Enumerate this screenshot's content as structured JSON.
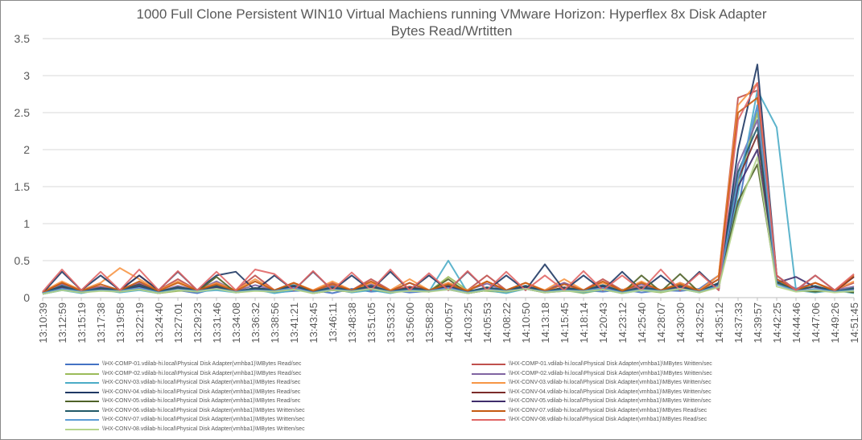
{
  "chart_data": {
    "type": "line",
    "title_line1": "1000 Full Clone Persistent WIN10 Virtual Machiens running VMware Horizon: Hyperflex 8x Disk Adapter",
    "title_line2": "Bytes Read/Wrtitten",
    "ylim": [
      0,
      3.5
    ],
    "yticks": [
      "0",
      "0.5",
      "1",
      "1.5",
      "2",
      "2.5",
      "3",
      "3.5"
    ],
    "grid": "horizontal",
    "legend_position": "bottom",
    "x": [
      "13:10:39",
      "13:12:59",
      "13:15:19",
      "13:17:38",
      "13:19:58",
      "13:22:19",
      "13:24:40",
      "13:27:01",
      "13:29:23",
      "13:31:46",
      "13:34:08",
      "13:36:32",
      "13:38:56",
      "13:41:21",
      "13:43:45",
      "13:46:11",
      "13:48:38",
      "13:51:05",
      "13:53:32",
      "13:56:00",
      "13:58:28",
      "14:00:57",
      "14:03:25",
      "14:05:53",
      "14:08:22",
      "14:10:50",
      "14:13:18",
      "14:15:45",
      "14:18:14",
      "14:20:43",
      "14:23:12",
      "14:25:40",
      "14:28:07",
      "14:30:30",
      "14:32:52",
      "14:35:12",
      "14:37:33",
      "14:39:57",
      "14:42:25",
      "14:44:46",
      "14:47:06",
      "14:49:26",
      "14:51:45"
    ],
    "series": [
      {
        "name": "\\\\HX-COMP-01.vdilab-hi.local\\Physical Disk Adapter(vmhba1)\\MBytes Read/sec",
        "color": "#4472c4",
        "values": [
          0.05,
          0.1,
          0.08,
          0.12,
          0.09,
          0.15,
          0.07,
          0.1,
          0.06,
          0.13,
          0.08,
          0.11,
          0.07,
          0.09,
          0.1,
          0.06,
          0.12,
          0.08,
          0.1,
          0.07,
          0.09,
          0.11,
          0.06,
          0.1,
          0.08,
          0.12,
          0.07,
          0.09,
          0.1,
          0.08,
          0.11,
          0.07,
          0.1,
          0.09,
          0.12,
          0.3,
          1.2,
          2.6,
          0.3,
          0.1,
          0.09,
          0.1,
          0.08
        ]
      },
      {
        "name": "\\\\HX-COMP-01.vdilab-hi.local\\Physical Disk Adapter(vmhba1)\\MBytes Written/sec",
        "color": "#c0504d",
        "values": [
          0.08,
          0.2,
          0.1,
          0.15,
          0.1,
          0.3,
          0.1,
          0.25,
          0.1,
          0.2,
          0.1,
          0.3,
          0.1,
          0.15,
          0.1,
          0.2,
          0.1,
          0.25,
          0.1,
          0.15,
          0.1,
          0.2,
          0.1,
          0.3,
          0.1,
          0.15,
          0.1,
          0.2,
          0.1,
          0.25,
          0.1,
          0.15,
          0.1,
          0.2,
          0.1,
          0.3,
          2.7,
          2.8,
          0.2,
          0.1,
          0.15,
          0.1,
          0.2
        ]
      },
      {
        "name": "\\\\HX-COMP-02.vdilab-hi.local\\Physical Disk Adapter(vmhba1)\\MBytes Read/sec",
        "color": "#9bbb59",
        "values": [
          0.06,
          0.12,
          0.07,
          0.1,
          0.08,
          0.11,
          0.06,
          0.09,
          0.1,
          0.14,
          0.07,
          0.1,
          0.08,
          0.12,
          0.06,
          0.1,
          0.09,
          0.11,
          0.07,
          0.1,
          0.08,
          0.28,
          0.1,
          0.09,
          0.07,
          0.12,
          0.08,
          0.1,
          0.06,
          0.11,
          0.09,
          0.1,
          0.07,
          0.12,
          0.08,
          0.2,
          1.5,
          2.5,
          0.2,
          0.1,
          0.08,
          0.1,
          0.07
        ]
      },
      {
        "name": "\\\\HX-COMP-02.vdilab-hi.local\\Physical Disk Adapter(vmhba1)\\MBytes Written/sec",
        "color": "#8064a2",
        "values": [
          0.07,
          0.18,
          0.09,
          0.14,
          0.1,
          0.2,
          0.08,
          0.16,
          0.1,
          0.22,
          0.09,
          0.17,
          0.1,
          0.2,
          0.08,
          0.16,
          0.1,
          0.18,
          0.09,
          0.2,
          0.08,
          0.15,
          0.1,
          0.19,
          0.09,
          0.16,
          0.1,
          0.2,
          0.08,
          0.17,
          0.1,
          0.18,
          0.09,
          0.2,
          0.1,
          0.25,
          1.8,
          2.4,
          0.25,
          0.12,
          0.2,
          0.1,
          0.15
        ]
      },
      {
        "name": "\\\\HX-CONV-03.vdilab-hi.local\\Physical Disk Adapter(vmhba1)\\MBytes Read/sec",
        "color": "#4bacc6",
        "values": [
          0.05,
          0.1,
          0.06,
          0.11,
          0.07,
          0.1,
          0.06,
          0.12,
          0.08,
          0.1,
          0.07,
          0.11,
          0.06,
          0.1,
          0.08,
          0.12,
          0.07,
          0.1,
          0.06,
          0.11,
          0.08,
          0.5,
          0.07,
          0.1,
          0.06,
          0.12,
          0.08,
          0.1,
          0.07,
          0.11,
          0.06,
          0.1,
          0.08,
          0.12,
          0.07,
          0.2,
          1.4,
          2.8,
          2.3,
          0.1,
          0.07,
          0.1,
          0.06
        ]
      },
      {
        "name": "\\\\HX-CONV-03.vdilab-hi.local\\Physical Disk Adapter(vmhba1)\\MBytes Written/sec",
        "color": "#f79646",
        "values": [
          0.08,
          0.22,
          0.1,
          0.2,
          0.4,
          0.25,
          0.1,
          0.22,
          0.1,
          0.2,
          0.1,
          0.25,
          0.1,
          0.2,
          0.1,
          0.22,
          0.1,
          0.2,
          0.1,
          0.25,
          0.1,
          0.2,
          0.1,
          0.22,
          0.1,
          0.2,
          0.1,
          0.25,
          0.1,
          0.2,
          0.1,
          0.22,
          0.1,
          0.2,
          0.1,
          0.3,
          2.6,
          2.9,
          0.3,
          0.1,
          0.2,
          0.1,
          0.22
        ]
      },
      {
        "name": "\\\\HX-CONV-04.vdilab-hi.local\\Physical Disk Adapter(vmhba1)\\MBytes Read/sec",
        "color": "#1f3864",
        "values": [
          0.06,
          0.35,
          0.1,
          0.3,
          0.1,
          0.3,
          0.1,
          0.35,
          0.1,
          0.3,
          0.35,
          0.1,
          0.3,
          0.1,
          0.35,
          0.1,
          0.3,
          0.1,
          0.35,
          0.1,
          0.3,
          0.1,
          0.35,
          0.1,
          0.3,
          0.1,
          0.45,
          0.1,
          0.3,
          0.1,
          0.35,
          0.1,
          0.3,
          0.1,
          0.35,
          0.1,
          2.0,
          3.15,
          0.3,
          0.1,
          0.3,
          0.1,
          0.28
        ]
      },
      {
        "name": "\\\\HX-CONV-04.vdilab-hi.local\\Physical Disk Adapter(vmhba1)\\MBytes Written/sec",
        "color": "#7b2c2a",
        "values": [
          0.07,
          0.15,
          0.08,
          0.12,
          0.1,
          0.18,
          0.08,
          0.14,
          0.1,
          0.16,
          0.08,
          0.13,
          0.1,
          0.15,
          0.08,
          0.12,
          0.1,
          0.16,
          0.08,
          0.14,
          0.1,
          0.15,
          0.08,
          0.13,
          0.1,
          0.16,
          0.08,
          0.14,
          0.1,
          0.15,
          0.08,
          0.12,
          0.1,
          0.16,
          0.08,
          0.2,
          1.6,
          2.2,
          0.2,
          0.1,
          0.15,
          0.08,
          0.28
        ]
      },
      {
        "name": "\\\\HX-CONV-05.vdilab-hi.local\\Physical Disk Adapter(vmhba1)\\MBytes Read/sec",
        "color": "#4f6228",
        "values": [
          0.05,
          0.12,
          0.07,
          0.1,
          0.08,
          0.12,
          0.06,
          0.1,
          0.08,
          0.28,
          0.07,
          0.1,
          0.08,
          0.12,
          0.06,
          0.1,
          0.08,
          0.12,
          0.07,
          0.1,
          0.08,
          0.25,
          0.06,
          0.1,
          0.08,
          0.12,
          0.07,
          0.1,
          0.08,
          0.12,
          0.06,
          0.3,
          0.08,
          0.32,
          0.07,
          0.15,
          1.3,
          1.8,
          0.2,
          0.1,
          0.08,
          0.1,
          0.07
        ]
      },
      {
        "name": "\\\\HX-CONV-05.vdilab-hi.local\\Physical Disk Adapter(vmhba1)\\MBytes Written/sec",
        "color": "#3f2d6b",
        "values": [
          0.06,
          0.14,
          0.08,
          0.12,
          0.09,
          0.15,
          0.07,
          0.13,
          0.09,
          0.14,
          0.08,
          0.12,
          0.09,
          0.15,
          0.07,
          0.13,
          0.09,
          0.14,
          0.08,
          0.12,
          0.09,
          0.15,
          0.07,
          0.13,
          0.09,
          0.14,
          0.08,
          0.12,
          0.09,
          0.15,
          0.07,
          0.13,
          0.09,
          0.14,
          0.08,
          0.18,
          1.5,
          2.0,
          0.2,
          0.28,
          0.14,
          0.08,
          0.12
        ]
      },
      {
        "name": "\\\\HX-CONV-06.vdilab-hi.local\\Physical Disk Adapter(vmhba1)\\MBytes Written/sec",
        "color": "#215967",
        "values": [
          0.06,
          0.16,
          0.08,
          0.13,
          0.1,
          0.17,
          0.08,
          0.14,
          0.1,
          0.16,
          0.08,
          0.13,
          0.1,
          0.17,
          0.08,
          0.14,
          0.1,
          0.16,
          0.08,
          0.13,
          0.1,
          0.17,
          0.08,
          0.14,
          0.1,
          0.16,
          0.08,
          0.13,
          0.1,
          0.17,
          0.08,
          0.14,
          0.1,
          0.16,
          0.08,
          0.2,
          1.7,
          2.3,
          0.22,
          0.1,
          0.16,
          0.08,
          0.13
        ]
      },
      {
        "name": "\\\\HX-CONV-07.vdilab-hi.local\\Physical Disk Adapter(vmhba1)\\MBytes Read/sec",
        "color": "#c55a11",
        "values": [
          0.07,
          0.2,
          0.09,
          0.18,
          0.1,
          0.22,
          0.09,
          0.2,
          0.1,
          0.18,
          0.09,
          0.22,
          0.1,
          0.2,
          0.09,
          0.18,
          0.1,
          0.22,
          0.09,
          0.2,
          0.1,
          0.18,
          0.09,
          0.22,
          0.1,
          0.2,
          0.09,
          0.18,
          0.1,
          0.22,
          0.09,
          0.2,
          0.1,
          0.18,
          0.09,
          0.25,
          2.5,
          2.7,
          0.25,
          0.1,
          0.2,
          0.09,
          0.3
        ]
      },
      {
        "name": "\\\\HX-CONV-07.vdilab-hi.local\\Physical Disk Adapter(vmhba1)\\MBytes Written/sec",
        "color": "#5b9bd5",
        "values": [
          0.06,
          0.12,
          0.08,
          0.1,
          0.09,
          0.13,
          0.07,
          0.11,
          0.09,
          0.12,
          0.08,
          0.1,
          0.09,
          0.13,
          0.07,
          0.11,
          0.09,
          0.12,
          0.08,
          0.1,
          0.09,
          0.13,
          0.07,
          0.11,
          0.09,
          0.12,
          0.08,
          0.1,
          0.09,
          0.13,
          0.07,
          0.11,
          0.09,
          0.12,
          0.08,
          0.16,
          1.6,
          2.6,
          0.18,
          0.09,
          0.12,
          0.08,
          0.1
        ]
      },
      {
        "name": "\\\\HX-CONV-08.vdilab-hi.local\\Physical Disk Adapter(vmhba1)\\MBytes Read/sec",
        "color": "#e06666",
        "values": [
          0.08,
          0.38,
          0.1,
          0.35,
          0.1,
          0.38,
          0.1,
          0.36,
          0.1,
          0.35,
          0.1,
          0.38,
          0.32,
          0.1,
          0.36,
          0.1,
          0.34,
          0.1,
          0.38,
          0.1,
          0.33,
          0.1,
          0.36,
          0.1,
          0.35,
          0.1,
          0.3,
          0.1,
          0.36,
          0.1,
          0.3,
          0.1,
          0.38,
          0.1,
          0.33,
          0.1,
          2.4,
          2.9,
          0.3,
          0.1,
          0.3,
          0.1,
          0.32
        ]
      },
      {
        "name": "\\\\HX-CONV-08.vdilab-hi.local\\Physical Disk Adapter(vmhba1)\\MBytes Written/sec",
        "color": "#b5d48c",
        "values": [
          0.05,
          0.1,
          0.07,
          0.09,
          0.08,
          0.11,
          0.06,
          0.1,
          0.08,
          0.12,
          0.07,
          0.09,
          0.08,
          0.11,
          0.06,
          0.1,
          0.08,
          0.12,
          0.07,
          0.09,
          0.08,
          0.11,
          0.06,
          0.1,
          0.08,
          0.12,
          0.07,
          0.09,
          0.08,
          0.11,
          0.06,
          0.1,
          0.08,
          0.12,
          0.07,
          0.14,
          1.2,
          1.9,
          0.15,
          0.08,
          0.1,
          0.07,
          0.09
        ]
      }
    ]
  }
}
